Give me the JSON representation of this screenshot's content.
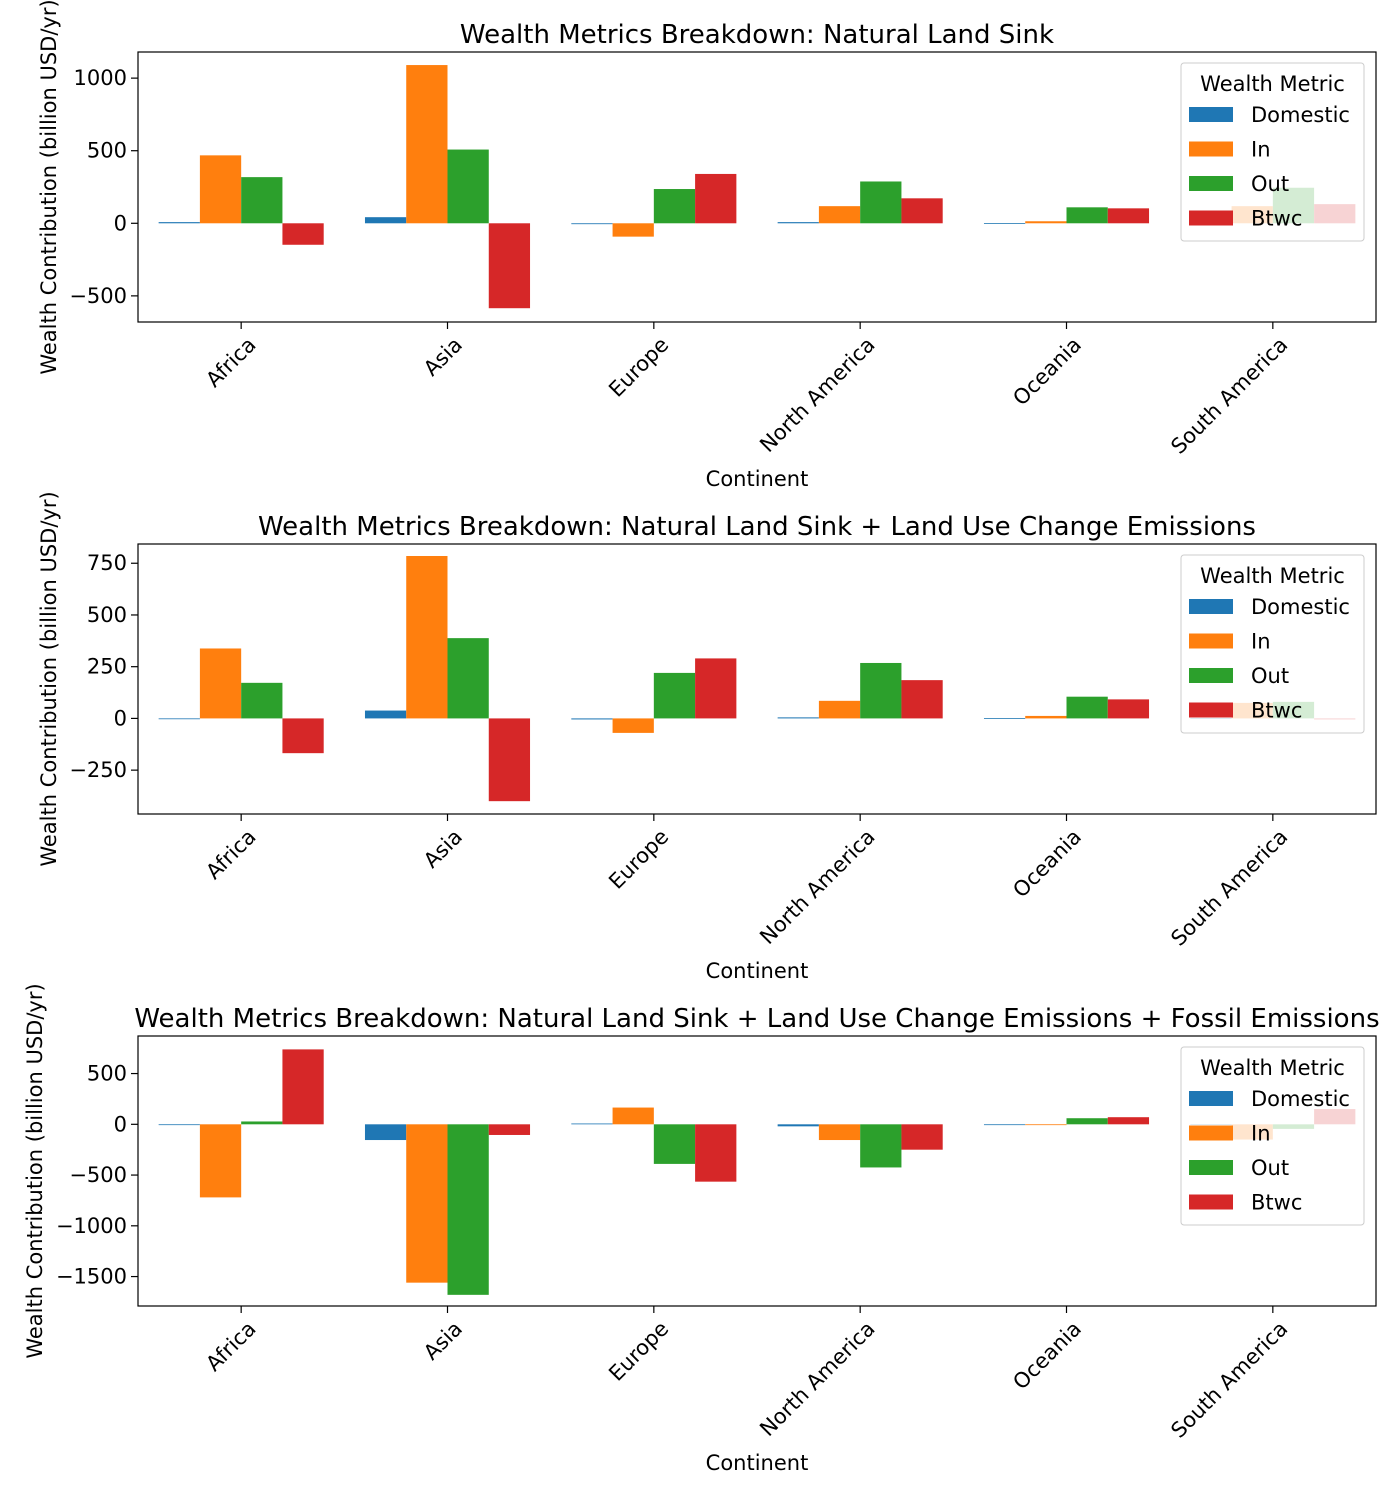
{
  "legend_entries_note": "",
  "chart_data": [
    {
      "type": "bar",
      "title": "Wealth Metrics Breakdown: Natural Land Sink",
      "xlabel": "Continent",
      "ylabel": "Wealth Contribution (billion USD/yr)",
      "ylim": [
        -680,
        1180
      ],
      "yticks": [
        -500,
        0,
        500,
        1000
      ],
      "ytick_labels": [
        "−500",
        "0",
        "500",
        "1000"
      ],
      "categories": [
        "Africa",
        "Asia",
        "Europe",
        "North America",
        "Oceania",
        "South America"
      ],
      "legend_title": "Wealth Metric",
      "legend_position": "upper right",
      "grid": false,
      "series": [
        {
          "name": "Domestic",
          "color": "#1f77b4",
          "values": [
            8,
            42,
            -6,
            8,
            2,
            6
          ]
        },
        {
          "name": "In",
          "color": "#ff7f0e",
          "values": [
            468,
            1090,
            -92,
            118,
            14,
            118
          ]
        },
        {
          "name": "Out",
          "color": "#2ca02c",
          "values": [
            318,
            508,
            236,
            288,
            110,
            245
          ]
        },
        {
          "name": "Btwc",
          "color": "#d62728",
          "values": [
            -148,
            -585,
            340,
            172,
            103,
            132
          ]
        }
      ]
    },
    {
      "type": "bar",
      "title": "Wealth Metrics Breakdown: Natural Land Sink + Land Use Change Emissions",
      "xlabel": "Continent",
      "ylabel": "Wealth Contribution (billion USD/yr)",
      "ylim": [
        -462,
        843
      ],
      "yticks": [
        -250,
        0,
        250,
        500,
        750
      ],
      "ytick_labels": [
        "−250",
        "0",
        "250",
        "500",
        "750"
      ],
      "categories": [
        "Africa",
        "Asia",
        "Europe",
        "North America",
        "Oceania",
        "South America"
      ],
      "legend_title": "Wealth Metric",
      "legend_position": "upper right",
      "grid": false,
      "series": [
        {
          "name": "Domestic",
          "color": "#1f77b4",
          "values": [
            -2,
            38,
            -5,
            5,
            2,
            2
          ]
        },
        {
          "name": "In",
          "color": "#ff7f0e",
          "values": [
            338,
            785,
            -70,
            85,
            12,
            75
          ]
        },
        {
          "name": "Out",
          "color": "#2ca02c",
          "values": [
            172,
            388,
            220,
            268,
            105,
            80
          ]
        },
        {
          "name": "Btwc",
          "color": "#d62728",
          "values": [
            -168,
            -400,
            290,
            185,
            92,
            -5
          ]
        }
      ]
    },
    {
      "type": "bar",
      "title": "Wealth Metrics Breakdown: Natural Land Sink + Land Use Change Emissions + Fossil Emissions",
      "xlabel": "Continent",
      "ylabel": "Wealth Contribution (billion USD/yr)",
      "ylim": [
        -1790,
        870
      ],
      "yticks": [
        -1500,
        -1000,
        -500,
        0,
        500
      ],
      "ytick_labels": [
        "−1500",
        "−1000",
        "−500",
        "0",
        "500"
      ],
      "categories": [
        "Africa",
        "Asia",
        "Europe",
        "North America",
        "Oceania",
        "South America"
      ],
      "legend_title": "Wealth Metric",
      "legend_position": "upper right",
      "grid": false,
      "series": [
        {
          "name": "Domestic",
          "color": "#1f77b4",
          "values": [
            -4,
            -155,
            8,
            -20,
            -3,
            -8
          ]
        },
        {
          "name": "In",
          "color": "#ff7f0e",
          "values": [
            -720,
            -1560,
            165,
            -155,
            -8,
            -150
          ]
        },
        {
          "name": "Out",
          "color": "#2ca02c",
          "values": [
            28,
            -1680,
            -390,
            -425,
            60,
            -45
          ]
        },
        {
          "name": "Btwc",
          "color": "#d62728",
          "values": [
            738,
            -105,
            -565,
            -250,
            70,
            150
          ]
        }
      ]
    }
  ]
}
